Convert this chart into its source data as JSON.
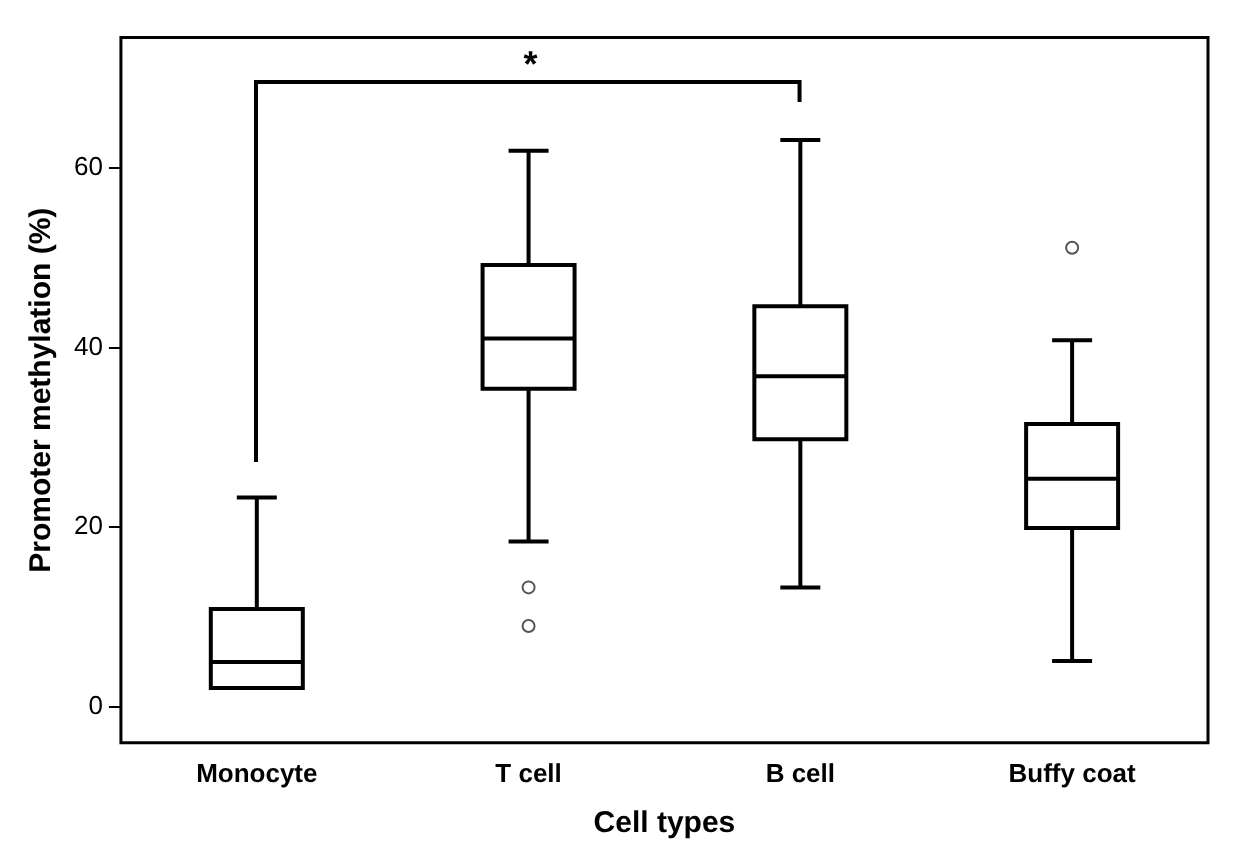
{
  "chart_data": {
    "type": "box",
    "xlabel": "Cell types",
    "ylabel": "Promoter methylation (%)",
    "categories": [
      "Monocyte",
      "T cell",
      "B cell",
      "Buffy coat"
    ],
    "boxes": [
      {
        "low": 2.1,
        "q1": 2.1,
        "median": 5,
        "q3": 10.9,
        "high": 23.3
      },
      {
        "low": 18.4,
        "q1": 35.4,
        "median": 41,
        "q3": 49.2,
        "high": 61.9,
        "outliers": [
          13.3,
          9
        ]
      },
      {
        "low": 13.3,
        "q1": 29.8,
        "median": 36.8,
        "q3": 44.6,
        "high": 63.1
      },
      {
        "low": 5.1,
        "q1": 19.9,
        "median": 25.4,
        "q3": 31.5,
        "high": 40.8,
        "outliers": [
          51.1
        ]
      }
    ],
    "ylim": [
      -4,
      74.5
    ],
    "yticks": [
      0,
      20,
      40,
      60
    ],
    "grid": false,
    "annotations": [
      "*"
    ]
  }
}
